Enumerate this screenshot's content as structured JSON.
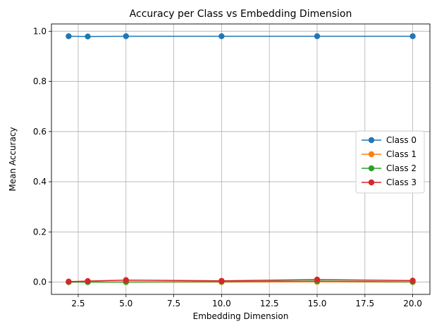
{
  "chart_data": {
    "type": "line",
    "title": "Accuracy per Class vs Embedding Dimension",
    "xlabel": "Embedding Dimension",
    "ylabel": "Mean Accuracy",
    "x": [
      2,
      3,
      5,
      10,
      15,
      20
    ],
    "xlim": [
      1.1,
      20.9
    ],
    "ylim": [
      -0.049,
      1.029
    ],
    "xticks": [
      2.5,
      5.0,
      7.5,
      10.0,
      12.5,
      15.0,
      17.5,
      20.0
    ],
    "xtick_labels": [
      "2.5",
      "5.0",
      "7.5",
      "10.0",
      "12.5",
      "15.0",
      "17.5",
      "20.0"
    ],
    "yticks": [
      0.0,
      0.2,
      0.4,
      0.6,
      0.8,
      1.0
    ],
    "ytick_labels": [
      "0.0",
      "0.2",
      "0.4",
      "0.6",
      "0.8",
      "1.0"
    ],
    "grid": true,
    "legend_position": "center-right",
    "series": [
      {
        "name": "Class 0",
        "color": "#1f77b4",
        "values": [
          0.98,
          0.979,
          0.98,
          0.98,
          0.98,
          0.98
        ]
      },
      {
        "name": "Class 1",
        "color": "#ff7f0e",
        "values": [
          0.0,
          0.0,
          0.0,
          0.0,
          0.001,
          0.0
        ]
      },
      {
        "name": "Class 2",
        "color": "#2ca02c",
        "values": [
          0.0,
          0.0,
          0.0,
          0.002,
          0.004,
          0.001
        ]
      },
      {
        "name": "Class 3",
        "color": "#d62728",
        "values": [
          0.002,
          0.004,
          0.008,
          0.005,
          0.01,
          0.006
        ]
      }
    ]
  }
}
